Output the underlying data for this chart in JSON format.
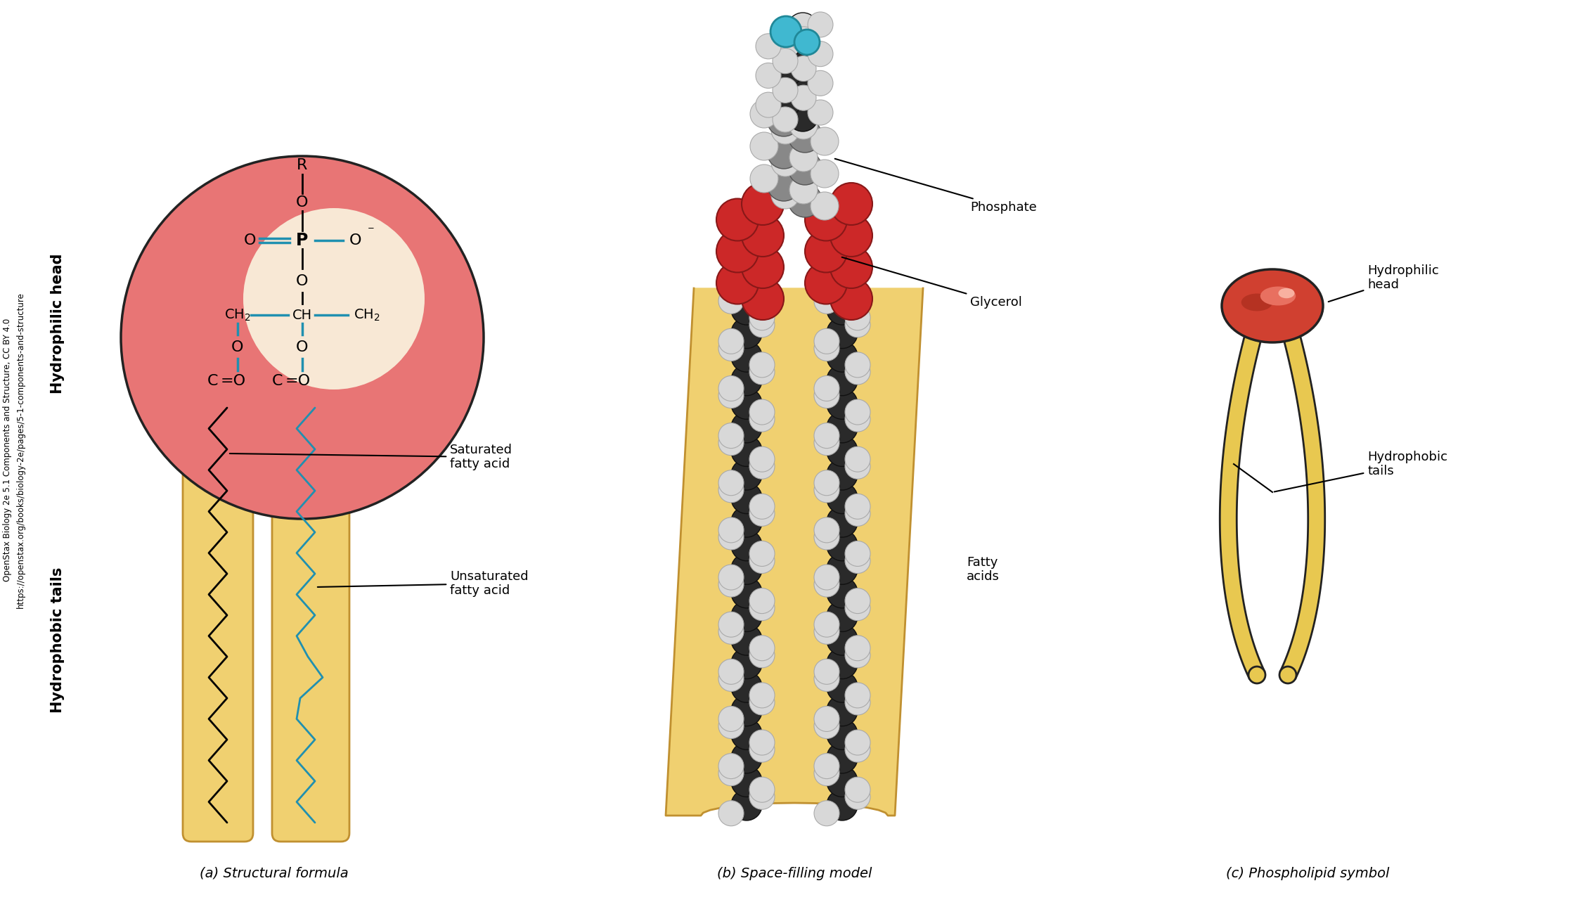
{
  "bg_color": "#ffffff",
  "head_red": "#e87575",
  "head_inner": "#f8e8d5",
  "tail_yellow": "#f0d070",
  "tail_yellow_dark": "#c09030",
  "blue_bond": "#2090b0",
  "sym_head_color": "#d04030",
  "sym_head_highlight": "#e87060",
  "sym_head_bright": "#f8b0a0",
  "sym_head_dark": "#a02818",
  "sym_tail_color": "#e8c850",
  "sym_tail_dark": "#a07820",
  "atom_c": "#2a2a2a",
  "atom_h": "#d8d8d8",
  "atom_h_ec": "#aaaaaa",
  "atom_o": "#cc2828",
  "atom_o_ec": "#881818",
  "atom_cyan": "#40b8d0",
  "atom_gray": "#bbbbbb",
  "credit_line1": "OpenStax Biology 2e 5.1 Components and Structure, CC BY 4.0",
  "credit_line2": "https://openstax.org/books/biology-2e/pages/5-1-components-and-structure",
  "subtitle_a": "(a) Structural formula",
  "subtitle_b": "(b) Space-filling model",
  "subtitle_c": "(c) Phospholipid symbol",
  "label_hydrophilic": "Hydrophilic head",
  "label_hydrophobic": "Hydrophobic tails",
  "label_phosphate": "Phosphate",
  "label_glycerol": "Glycerol",
  "label_sat": "Saturated\nfatty acid",
  "label_unsat": "Unsaturated\nfatty acid",
  "label_fatty": "Fatty\nacids",
  "label_sym_head": "Hydrophilic\nhead",
  "label_sym_tails": "Hydrophobic\ntails"
}
